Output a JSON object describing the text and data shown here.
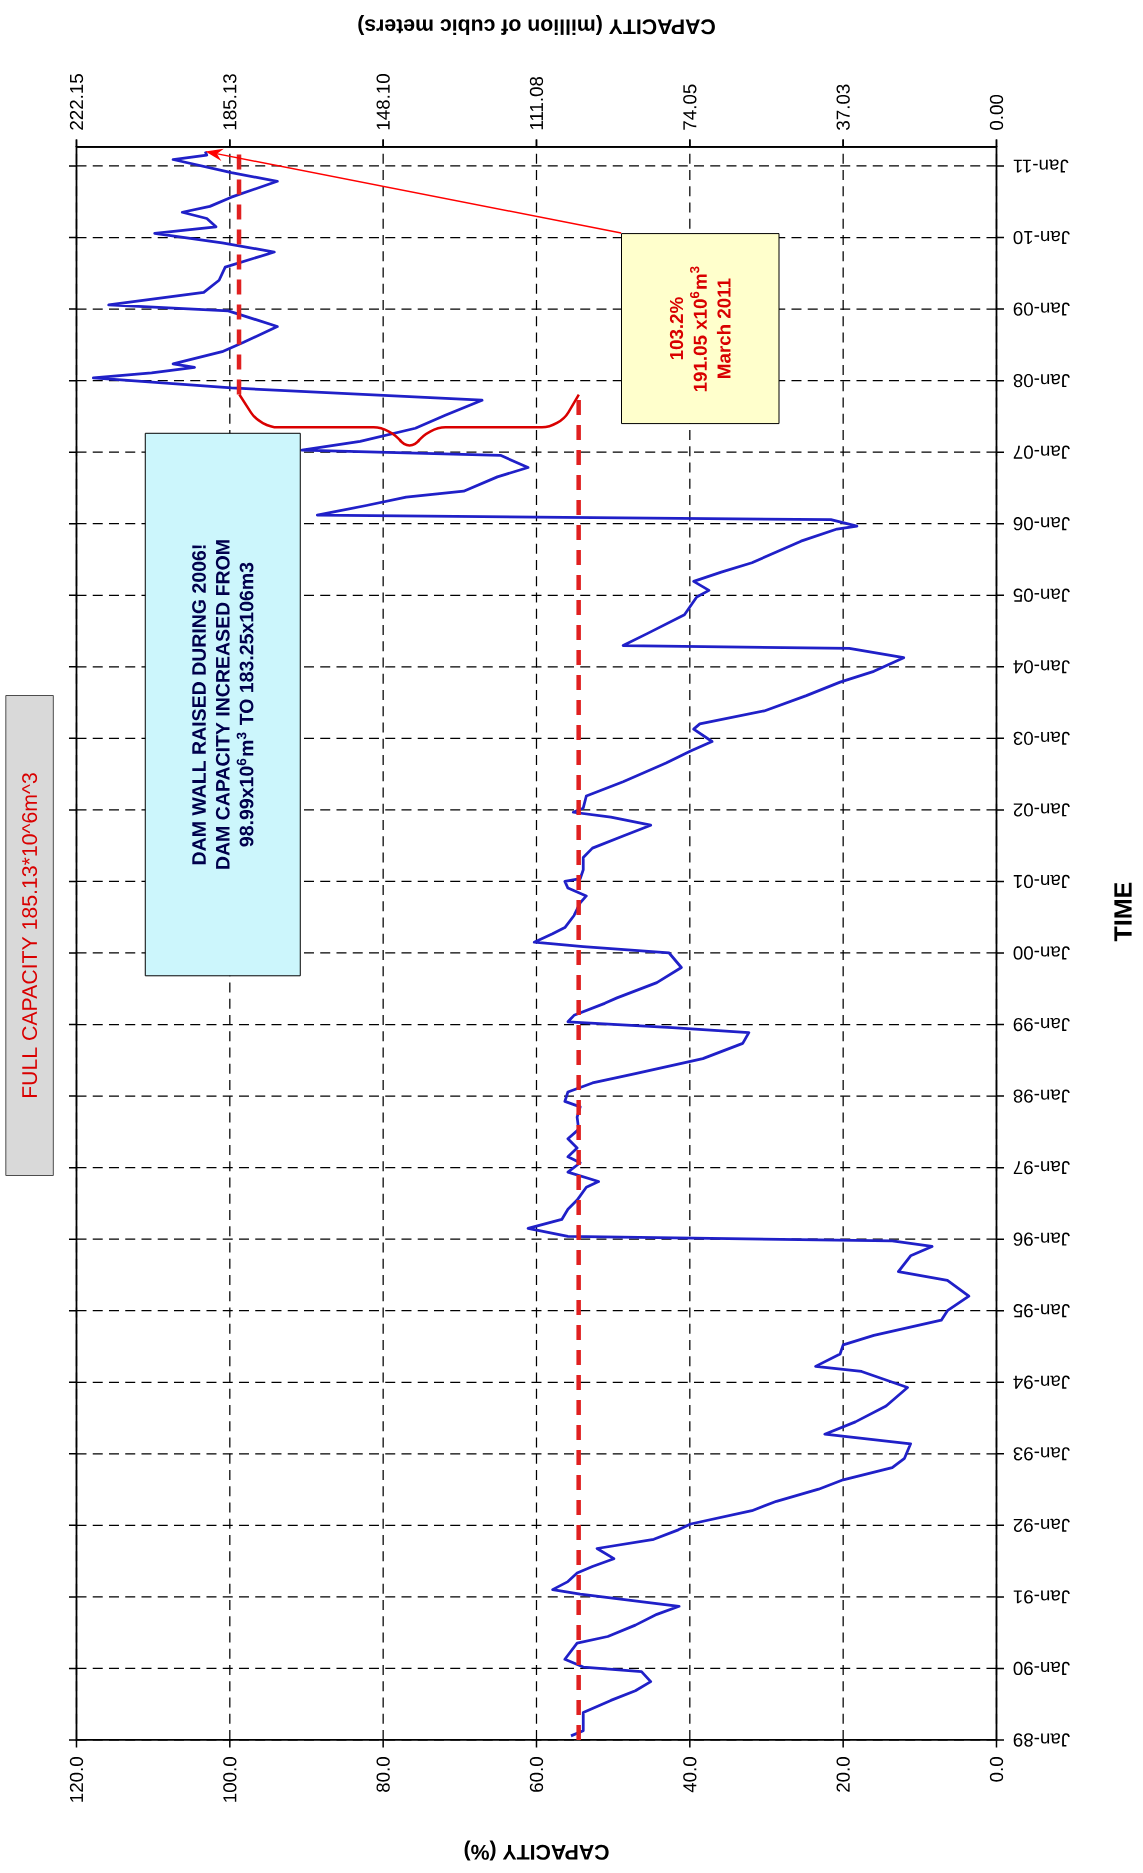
{
  "chart_data": {
    "type": "line",
    "orientation": "horizontal",
    "xlabel": "CAPACITY (%)",
    "ylabel": "TIME",
    "x2label": "CAPACITY (million of cubic meters)",
    "xlim": [
      120,
      0
    ],
    "xticks": [
      {
        "value": 0,
        "label": "0.0"
      },
      {
        "value": 20,
        "label": "20.0"
      },
      {
        "value": 40,
        "label": "40.0"
      },
      {
        "value": 60,
        "label": "60.0"
      },
      {
        "value": 80,
        "label": "80.0"
      },
      {
        "value": 100,
        "label": "100.0"
      },
      {
        "value": 120,
        "label": "120.0"
      }
    ],
    "x2lim": [
      222.15,
      0
    ],
    "x2ticks": [
      {
        "value": 0,
        "label": "0.00"
      },
      {
        "value": 37.03,
        "label": "37.03"
      },
      {
        "value": 74.05,
        "label": "74.05"
      },
      {
        "value": 111.08,
        "label": "111.08"
      },
      {
        "value": 148.1,
        "label": "148.10"
      },
      {
        "value": 185.13,
        "label": "185.13"
      },
      {
        "value": 222.15,
        "label": "222.15"
      }
    ],
    "ylim": [
      "1989-01-01",
      "2011-04-08"
    ],
    "yticks": [
      {
        "value": "1989-01-01",
        "label": "Jan-89"
      },
      {
        "value": "1990-01-01",
        "label": "Jan-90"
      },
      {
        "value": "1991-01-01",
        "label": "Jan-91"
      },
      {
        "value": "1992-01-01",
        "label": "Jan-92"
      },
      {
        "value": "1993-01-01",
        "label": "Jan-93"
      },
      {
        "value": "1994-01-01",
        "label": "Jan-94"
      },
      {
        "value": "1995-01-01",
        "label": "Jan-95"
      },
      {
        "value": "1996-01-01",
        "label": "Jan-96"
      },
      {
        "value": "1997-01-01",
        "label": "Jan-97"
      },
      {
        "value": "1998-01-01",
        "label": "Jan-98"
      },
      {
        "value": "1999-01-01",
        "label": "Jan-99"
      },
      {
        "value": "2000-01-01",
        "label": "Jan-00"
      },
      {
        "value": "2001-01-01",
        "label": "Jan-01"
      },
      {
        "value": "2002-01-01",
        "label": "Jan-02"
      },
      {
        "value": "2003-01-01",
        "label": "Jan-03"
      },
      {
        "value": "2004-01-01",
        "label": "Jan-04"
      },
      {
        "value": "2005-01-01",
        "label": "Jan-05"
      },
      {
        "value": "2006-01-01",
        "label": "Jan-06"
      },
      {
        "value": "2007-01-01",
        "label": "Jan-07"
      },
      {
        "value": "2008-01-01",
        "label": "Jan-08"
      },
      {
        "value": "2009-01-01",
        "label": "Jan-09"
      },
      {
        "value": "2010-01-01",
        "label": "Jan-10"
      },
      {
        "value": "2011-01-01",
        "label": "Jan-11"
      }
    ],
    "grid": true,
    "series": [
      {
        "color": "#2020c8",
        "x": [
          "1989-01-22",
          "1989-02-17",
          "1989-05-21",
          "1989-07-22",
          "1989-09-09",
          "1989-10-26",
          "1989-12-16",
          "1990-01-08",
          "1990-02-17",
          "1990-05-10",
          "1990-06-13",
          "1990-08-10",
          "1990-10-04",
          "1990-11-14",
          "1991-01-15",
          "1991-02-07",
          "1991-03-20",
          "1991-05-03",
          "1991-06-05",
          "1991-07-15",
          "1991-09-05",
          "1991-10-22",
          "1991-12-09",
          "1992-01-08",
          "1992-03-16",
          "1992-05-03",
          "1992-07-04",
          "1992-08-21",
          "1992-10-22",
          "1992-12-09",
          "1993-02-21",
          "1993-04-11",
          "1993-06-13",
          "1993-09-02",
          "1993-12-05",
          "1994-02-25",
          "1994-03-23",
          "1994-05-25",
          "1994-07-11",
          "1994-08-28",
          "1994-11-14",
          "1995-01-01",
          "1995-03-16",
          "1995-06-05",
          "1995-07-19",
          "1995-10-08",
          "1995-11-25",
          "1995-12-23",
          "1996-01-15",
          "1996-02-25",
          "1996-04-11",
          "1996-06-02",
          "1996-07-19",
          "1996-09-23",
          "1996-10-22",
          "1996-12-09",
          "1997-01-26",
          "1997-02-25",
          "1997-04-11",
          "1997-05-28",
          "1997-07-15",
          "1997-09-16",
          "1997-11-07",
          "1997-12-05",
          "1998-01-22",
          "1998-03-09",
          "1998-04-26",
          "1998-07-11",
          "1998-09-27",
          "1998-11-21",
          "1998-12-16",
          "1999-01-15",
          "1999-02-17",
          "1999-04-19",
          "1999-05-17",
          "1999-08-03",
          "1999-10-19",
          "2000-01-01",
          "2000-02-03",
          "2000-02-25",
          "2000-04-08",
          "2000-05-10",
          "2000-07-11",
          "2000-09-13",
          "2000-10-19",
          "2000-11-28",
          "2001-01-01",
          "2001-01-15",
          "2001-03-02",
          "2001-05-03",
          "2001-06-20",
          "2001-08-21",
          "2001-10-15",
          "2001-11-25",
          "2001-12-20",
          "2002-01-11",
          "2002-03-13",
          "2002-05-25",
          "2002-08-28",
          "2002-10-29",
          "2002-12-16",
          "2003-02-17",
          "2003-03-16",
          "2003-05-21",
          "2003-08-07",
          "2003-10-15",
          "2003-12-09",
          "2004-02-17",
          "2004-04-04",
          "2004-04-19",
          "2004-06-20",
          "2004-09-23",
          "2004-12-23",
          "2005-01-26",
          "2005-03-13",
          "2005-04-29",
          "2005-06-16",
          "2005-10-04",
          "2005-12-05",
          "2005-12-20",
          "2006-01-22",
          "2006-02-14",
          "2006-04-04",
          "2006-05-17",
          "2006-06-16",
          "2006-08-28",
          "2006-10-15",
          "2006-12-16",
          "2007-01-11",
          "2007-02-25",
          "2007-05-03",
          "2007-07-08",
          "2007-09-23",
          "2007-11-25",
          "2008-01-15",
          "2008-02-10",
          "2008-03-09",
          "2008-03-27",
          "2008-05-28",
          "2008-07-15",
          "2008-10-04",
          "2008-12-23",
          "2009-01-22",
          "2009-03-27",
          "2009-05-28",
          "2009-08-03",
          "2009-10-19",
          "2009-12-05",
          "2010-01-22",
          "2010-02-25",
          "2010-04-08",
          "2010-05-10",
          "2010-06-09",
          "2010-07-26",
          "2010-10-15",
          "2010-11-28",
          "2011-02-03",
          "2011-02-25",
          "2011-03-16"
        ],
        "values": [
          55.5,
          53.9,
          53.9,
          50.3,
          47.1,
          45.1,
          46.3,
          53.9,
          56.3,
          54.7,
          50.7,
          47.1,
          44.3,
          41.4,
          54.3,
          57.9,
          55.9,
          54.7,
          52.7,
          49.9,
          52.1,
          44.7,
          41.5,
          39.9,
          31.9,
          28.7,
          23.2,
          20.0,
          13.6,
          12.0,
          11.2,
          22.4,
          18.4,
          14.4,
          11.6,
          17.6,
          23.6,
          20.4,
          20.0,
          16.0,
          7.2,
          6.4,
          3.6,
          6.4,
          12.8,
          11.2,
          8.4,
          13.6,
          55.9,
          61.1,
          56.7,
          55.9,
          54.7,
          53.5,
          51.9,
          55.9,
          54.3,
          55.9,
          54.7,
          55.9,
          54.5,
          54.7,
          54.3,
          56.3,
          55.9,
          52.7,
          47.1,
          38.3,
          33.1,
          32.3,
          42.3,
          55.9,
          55.1,
          51.1,
          49.5,
          44.3,
          41.1,
          42.7,
          53.9,
          60.3,
          57.9,
          56.3,
          55.1,
          54.3,
          53.5,
          55.9,
          56.3,
          54.3,
          53.9,
          53.9,
          52.7,
          48.7,
          45.1,
          50.3,
          55.2,
          53.9,
          53.5,
          48.7,
          43.1,
          39.9,
          37.1,
          39.5,
          38.7,
          30.3,
          24.8,
          20.4,
          16.0,
          12.1,
          19.2,
          48.7,
          45.5,
          40.7,
          39.1,
          37.5,
          39.5,
          35.9,
          31.9,
          25.5,
          20.8,
          18.2,
          21.6,
          88.6,
          82.2,
          77.0,
          69.5,
          65.1,
          61.1,
          64.7,
          90.6,
          83.0,
          75.8,
          71.9,
          67.1,
          99.8,
          117.8,
          110.2,
          104.6,
          107.4,
          101.0,
          98.2,
          93.8,
          100.2,
          115.8,
          103.4,
          101.4,
          100.6,
          94.2,
          101.0,
          109.8,
          101.8,
          103.0,
          106.2,
          102.6,
          99.8,
          93.8,
          99.8,
          107.4,
          103.0,
          103.2
        ]
      },
      {
        "color": "#e02020",
        "line_style": "dashed",
        "values": [
          54.5,
          54.5
        ],
        "x": [
          "1989-01-01",
          "2007-10-22"
        ]
      },
      {
        "color": "#e02020",
        "line_style": "dashed",
        "values": [
          98.8,
          98.8
        ],
        "x": [
          "2007-10-22",
          "2011-04-01"
        ]
      }
    ],
    "annotations": [
      "103.2%",
      "191.05 x10$^{6}$m$^{3}$",
      "March 2011",
      "DAM WALL RAISED DURING 2006!",
      "DAM CAPACITY INCREASED FROM",
      "98.99x10$^{6}$m$^{3}$ TO 183.25x106m3",
      "FULL CAPACITY 185.13*10^6m^3"
    ]
  }
}
